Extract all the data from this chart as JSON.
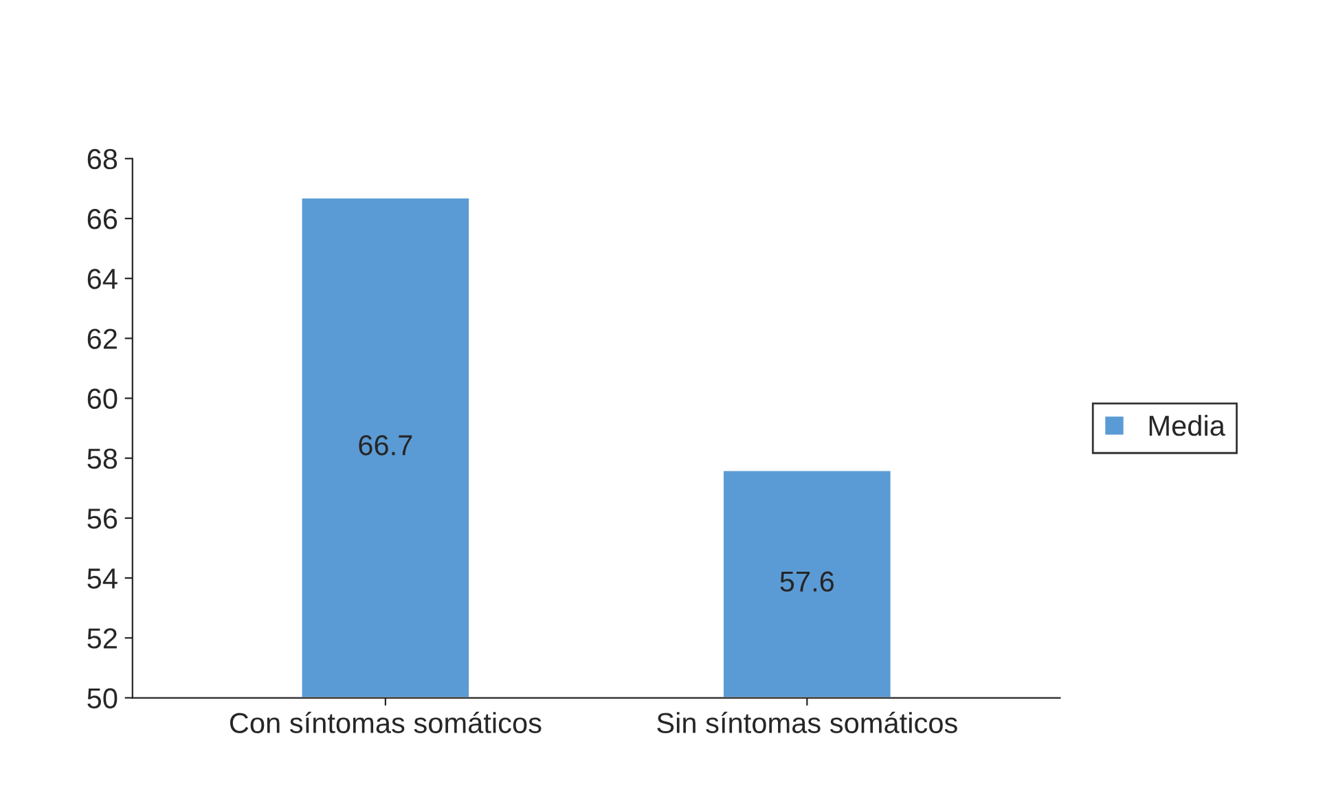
{
  "chart_data": {
    "type": "bar",
    "categories": [
      "Con síntomas somáticos",
      "Sin síntomas somáticos"
    ],
    "series": [
      {
        "name": "Media",
        "color": "#5b9bd5",
        "values": [
          66.7,
          57.6
        ]
      }
    ],
    "ylim": [
      50,
      68
    ],
    "yticks": [
      50,
      52,
      54,
      56,
      58,
      60,
      62,
      64,
      66,
      68
    ],
    "data_labels": true,
    "grid": false,
    "legend": "right"
  }
}
